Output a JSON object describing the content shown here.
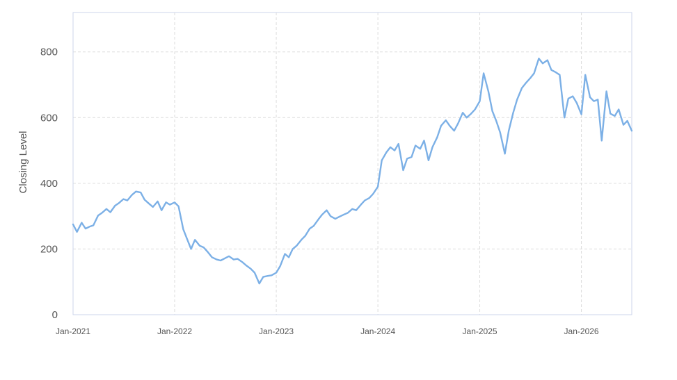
{
  "chart_data": {
    "type": "line",
    "title": "",
    "xlabel": "",
    "ylabel": "Closing Level",
    "ylim": [
      0,
      920
    ],
    "xlim": [
      "2021-01-01",
      "2026-07-01"
    ],
    "yticks": [
      "0",
      "200",
      "400",
      "600",
      "800"
    ],
    "xticks": [
      {
        "label": "Jan-2021",
        "date": "2021-01-01"
      },
      {
        "label": "Jan-2022",
        "date": "2022-01-01"
      },
      {
        "label": "Jan-2023",
        "date": "2023-01-01"
      },
      {
        "label": "Jan-2024",
        "date": "2024-01-01"
      },
      {
        "label": "Jan-2025",
        "date": "2025-01-01"
      },
      {
        "label": "Jan-2026",
        "date": "2026-01-01"
      }
    ],
    "grid": true,
    "colors": {
      "line": "#7cb0e6",
      "grid": "#dcdcdc",
      "axis": "#ccd6eb",
      "text": "#555555"
    },
    "series": [
      {
        "points": [
          [
            "2021-01-01",
            275
          ],
          [
            "2021-01-15",
            252
          ],
          [
            "2021-02-01",
            280
          ],
          [
            "2021-02-15",
            262
          ],
          [
            "2021-03-01",
            268
          ],
          [
            "2021-03-15",
            272
          ],
          [
            "2021-04-01",
            302
          ],
          [
            "2021-04-15",
            310
          ],
          [
            "2021-05-01",
            322
          ],
          [
            "2021-05-15",
            312
          ],
          [
            "2021-06-01",
            332
          ],
          [
            "2021-06-15",
            340
          ],
          [
            "2021-07-01",
            352
          ],
          [
            "2021-07-15",
            348
          ],
          [
            "2021-08-01",
            365
          ],
          [
            "2021-08-15",
            375
          ],
          [
            "2021-09-01",
            372
          ],
          [
            "2021-09-15",
            350
          ],
          [
            "2021-10-01",
            338
          ],
          [
            "2021-10-15",
            328
          ],
          [
            "2021-11-01",
            345
          ],
          [
            "2021-11-15",
            318
          ],
          [
            "2021-12-01",
            342
          ],
          [
            "2021-12-15",
            335
          ],
          [
            "2022-01-01",
            342
          ],
          [
            "2022-01-15",
            330
          ],
          [
            "2022-02-01",
            260
          ],
          [
            "2022-02-15",
            230
          ],
          [
            "2022-03-01",
            200
          ],
          [
            "2022-03-15",
            228
          ],
          [
            "2022-04-01",
            210
          ],
          [
            "2022-04-15",
            205
          ],
          [
            "2022-05-01",
            190
          ],
          [
            "2022-05-15",
            175
          ],
          [
            "2022-06-01",
            168
          ],
          [
            "2022-06-15",
            165
          ],
          [
            "2022-07-01",
            172
          ],
          [
            "2022-07-15",
            178
          ],
          [
            "2022-08-01",
            168
          ],
          [
            "2022-08-15",
            170
          ],
          [
            "2022-09-01",
            160
          ],
          [
            "2022-09-15",
            150
          ],
          [
            "2022-10-01",
            140
          ],
          [
            "2022-10-15",
            128
          ],
          [
            "2022-11-01",
            95
          ],
          [
            "2022-11-15",
            115
          ],
          [
            "2022-12-01",
            118
          ],
          [
            "2022-12-15",
            120
          ],
          [
            "2023-01-01",
            128
          ],
          [
            "2023-01-15",
            148
          ],
          [
            "2023-02-01",
            185
          ],
          [
            "2023-02-15",
            175
          ],
          [
            "2023-03-01",
            200
          ],
          [
            "2023-03-15",
            210
          ],
          [
            "2023-04-01",
            228
          ],
          [
            "2023-04-15",
            240
          ],
          [
            "2023-05-01",
            262
          ],
          [
            "2023-05-15",
            270
          ],
          [
            "2023-06-01",
            290
          ],
          [
            "2023-06-15",
            305
          ],
          [
            "2023-07-01",
            318
          ],
          [
            "2023-07-15",
            300
          ],
          [
            "2023-08-01",
            292
          ],
          [
            "2023-08-15",
            298
          ],
          [
            "2023-09-01",
            305
          ],
          [
            "2023-09-15",
            310
          ],
          [
            "2023-10-01",
            322
          ],
          [
            "2023-10-15",
            318
          ],
          [
            "2023-11-01",
            335
          ],
          [
            "2023-11-15",
            348
          ],
          [
            "2023-12-01",
            355
          ],
          [
            "2023-12-15",
            368
          ],
          [
            "2024-01-01",
            390
          ],
          [
            "2024-01-15",
            470
          ],
          [
            "2024-02-01",
            495
          ],
          [
            "2024-02-15",
            510
          ],
          [
            "2024-03-01",
            500
          ],
          [
            "2024-03-15",
            520
          ],
          [
            "2024-04-01",
            440
          ],
          [
            "2024-04-15",
            475
          ],
          [
            "2024-05-01",
            480
          ],
          [
            "2024-05-15",
            515
          ],
          [
            "2024-06-01",
            505
          ],
          [
            "2024-06-15",
            530
          ],
          [
            "2024-07-01",
            470
          ],
          [
            "2024-07-15",
            510
          ],
          [
            "2024-08-01",
            540
          ],
          [
            "2024-08-15",
            575
          ],
          [
            "2024-09-01",
            592
          ],
          [
            "2024-09-15",
            575
          ],
          [
            "2024-10-01",
            560
          ],
          [
            "2024-10-15",
            582
          ],
          [
            "2024-11-01",
            615
          ],
          [
            "2024-11-15",
            600
          ],
          [
            "2024-12-01",
            612
          ],
          [
            "2024-12-15",
            625
          ],
          [
            "2025-01-01",
            650
          ],
          [
            "2025-01-15",
            735
          ],
          [
            "2025-02-01",
            680
          ],
          [
            "2025-02-15",
            620
          ],
          [
            "2025-03-01",
            590
          ],
          [
            "2025-03-15",
            555
          ],
          [
            "2025-04-01",
            490
          ],
          [
            "2025-04-15",
            560
          ],
          [
            "2025-05-01",
            615
          ],
          [
            "2025-05-15",
            655
          ],
          [
            "2025-06-01",
            690
          ],
          [
            "2025-06-15",
            705
          ],
          [
            "2025-07-01",
            720
          ],
          [
            "2025-07-15",
            735
          ],
          [
            "2025-08-01",
            780
          ],
          [
            "2025-08-15",
            765
          ],
          [
            "2025-09-01",
            775
          ],
          [
            "2025-09-15",
            745
          ],
          [
            "2025-10-01",
            738
          ],
          [
            "2025-10-15",
            730
          ],
          [
            "2025-11-01",
            600
          ],
          [
            "2025-11-15",
            658
          ],
          [
            "2025-12-01",
            665
          ],
          [
            "2025-12-15",
            645
          ],
          [
            "2026-01-01",
            610
          ],
          [
            "2026-01-15",
            730
          ],
          [
            "2026-02-01",
            662
          ],
          [
            "2026-02-15",
            650
          ],
          [
            "2026-03-01",
            655
          ],
          [
            "2026-03-15",
            530
          ],
          [
            "2026-04-01",
            680
          ],
          [
            "2026-04-15",
            612
          ],
          [
            "2026-05-01",
            605
          ],
          [
            "2026-05-15",
            625
          ],
          [
            "2026-06-01",
            578
          ],
          [
            "2026-06-15",
            590
          ],
          [
            "2026-07-01",
            560
          ]
        ]
      }
    ]
  }
}
